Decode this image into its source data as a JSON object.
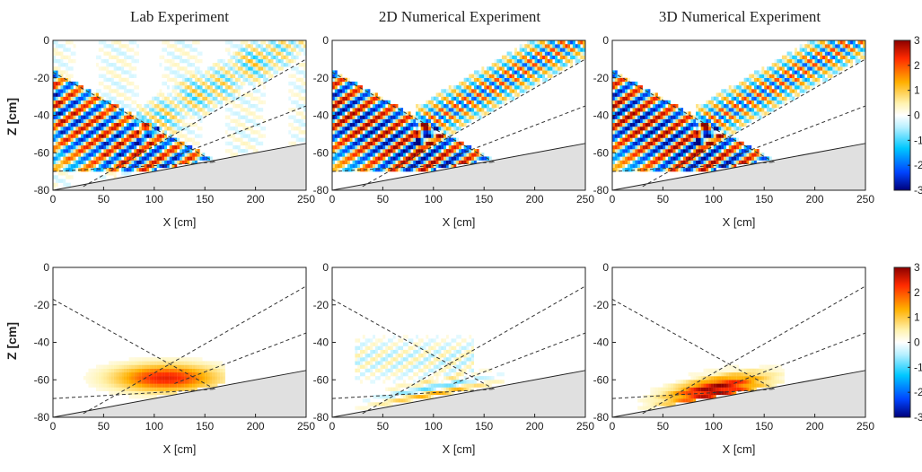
{
  "chart_data": {
    "type": "heatmap",
    "column_titles": [
      "Lab Experiment",
      "2D Numerical Experiment",
      "3D Numerical Experiment"
    ],
    "xlabel": "X [cm]",
    "ylabel": "Z [cm]",
    "xlim": [
      0,
      250
    ],
    "ylim": [
      -80,
      0
    ],
    "xticks": [
      0,
      50,
      100,
      150,
      200,
      250
    ],
    "yticks": [
      0,
      -20,
      -40,
      -60,
      -80
    ],
    "colorbar": {
      "ticks": [
        3,
        2,
        1,
        0,
        -1,
        -2,
        -3
      ],
      "range": [
        -3,
        3
      ]
    },
    "slope_line": {
      "x": [
        0,
        250
      ],
      "z": [
        -80,
        -55
      ]
    },
    "ray_lines": [
      {
        "x": [
          0,
          160
        ],
        "z": [
          -17,
          -65
        ]
      },
      {
        "x": [
          0,
          160
        ],
        "z": [
          -70,
          -65
        ]
      },
      {
        "x": [
          30,
          250
        ],
        "z": [
          -78,
          -10
        ]
      },
      {
        "x": [
          120,
          250
        ],
        "z": [
          -62,
          -35
        ]
      }
    ],
    "panels": [
      {
        "row": 1,
        "column": "Lab Experiment",
        "field": "wave"
      },
      {
        "row": 1,
        "column": "2D Numerical Experiment",
        "field": "wave"
      },
      {
        "row": 1,
        "column": "3D Numerical Experiment",
        "field": "wave"
      },
      {
        "row": 2,
        "column": "Lab Experiment",
        "field": "mean"
      },
      {
        "row": 2,
        "column": "2D Numerical Experiment",
        "field": "mean"
      },
      {
        "row": 2,
        "column": "3D Numerical Experiment",
        "field": "mean"
      }
    ]
  }
}
